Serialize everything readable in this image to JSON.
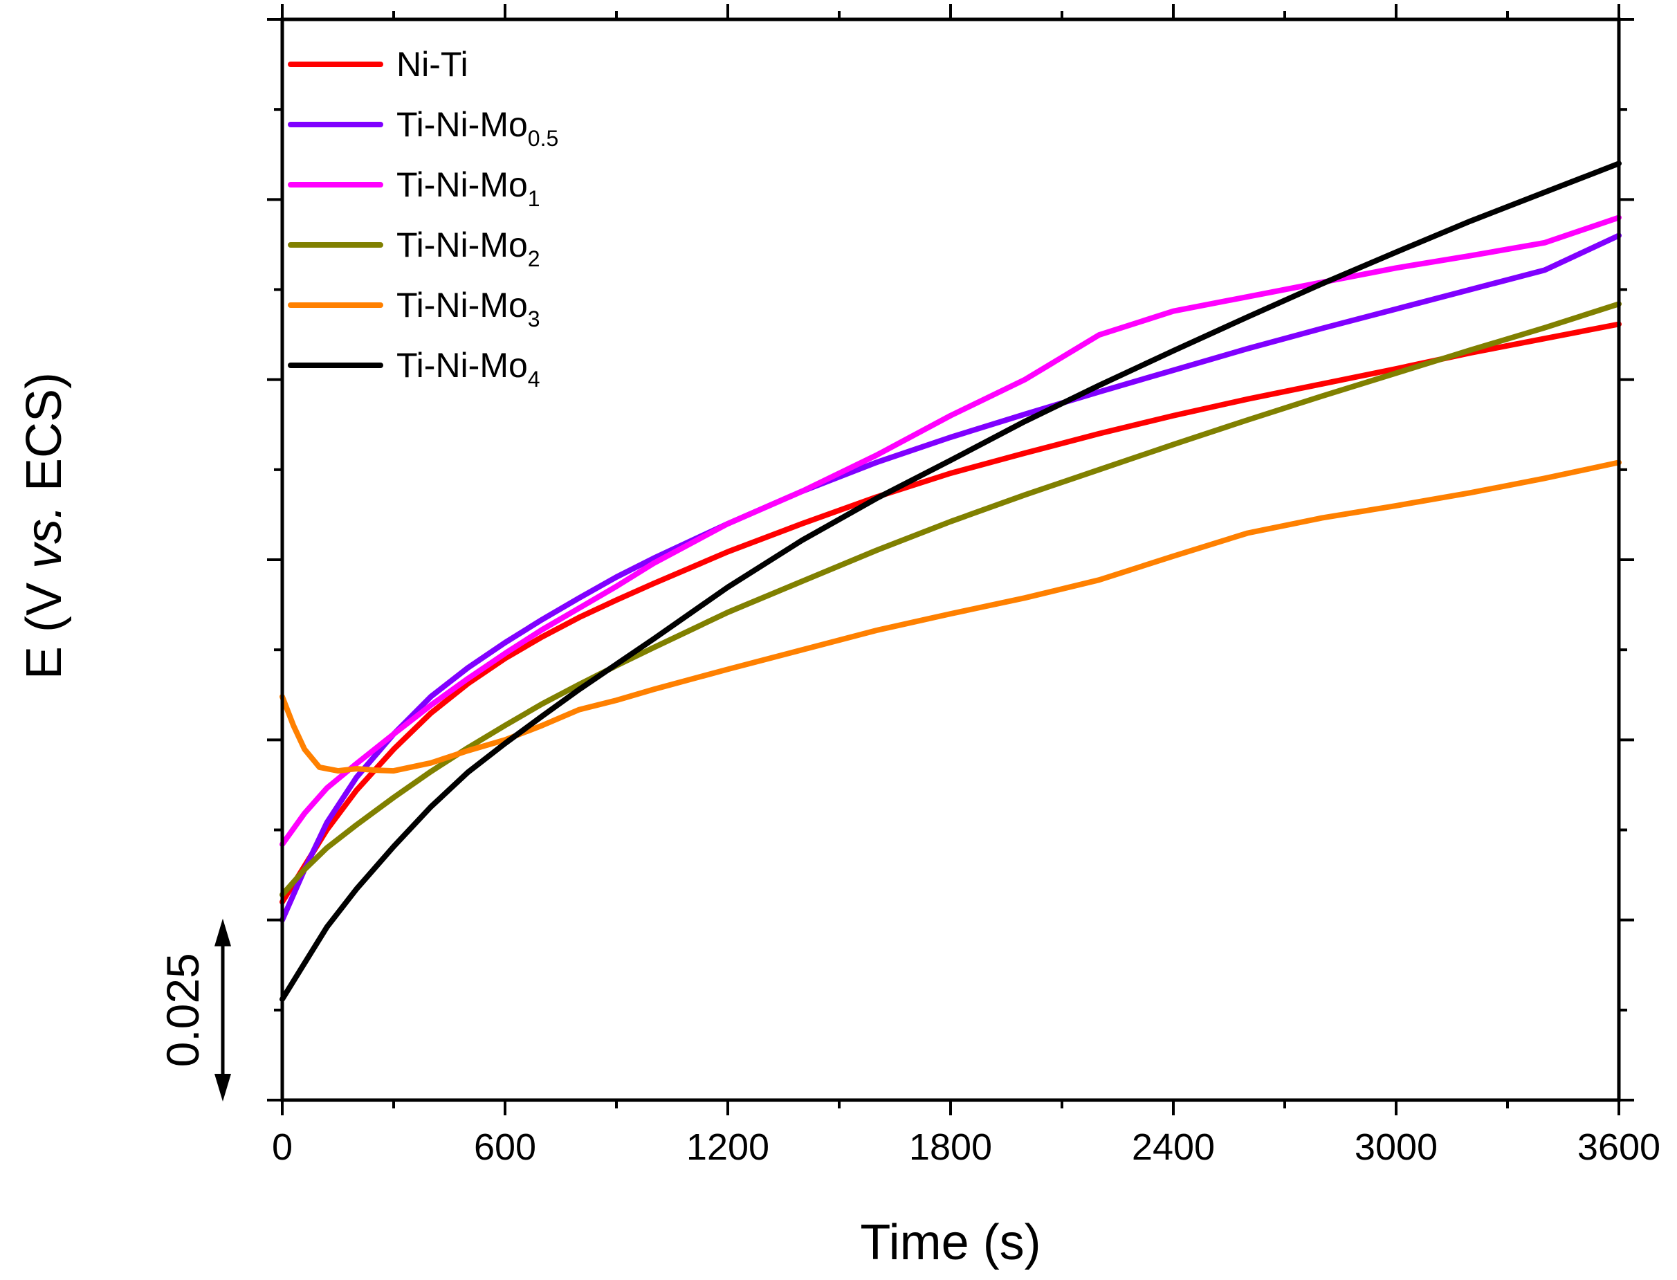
{
  "chart_data": {
    "type": "line",
    "title": "",
    "xlabel": "Time (s)",
    "ylabel": {
      "prefix": "E (V ",
      "italic": "vs.",
      "suffix": " ECS)"
    },
    "xlim": [
      0,
      3600
    ],
    "ylim": [
      0,
      0.15
    ],
    "x_ticks": [
      0,
      600,
      1200,
      1800,
      2400,
      3000,
      3600
    ],
    "x_tick_labels": [
      "0",
      "600",
      "1200",
      "1800",
      "2400",
      "3000",
      "3600"
    ],
    "y_tick_labels_shown": false,
    "scale_bar": {
      "label": "0.025",
      "from": 0,
      "to": 0.025
    },
    "grid": false,
    "legend_position": "top-left",
    "series": [
      {
        "name": "Ni-Ti",
        "label_main": "Ni-Ti",
        "label_sub": "",
        "color": "#ff0000",
        "x": [
          0,
          60,
          120,
          200,
          300,
          400,
          500,
          600,
          700,
          800,
          900,
          1000,
          1200,
          1400,
          1600,
          1800,
          2000,
          2200,
          2400,
          2600,
          2800,
          3000,
          3200,
          3400,
          3600
        ],
        "y": [
          0.0275,
          0.0325,
          0.0375,
          0.043,
          0.0487,
          0.0537,
          0.0578,
          0.0613,
          0.0643,
          0.067,
          0.0694,
          0.0717,
          0.0761,
          0.08,
          0.0837,
          0.087,
          0.0898,
          0.0925,
          0.095,
          0.0973,
          0.0994,
          0.1015,
          0.1037,
          0.1057,
          0.1077
        ]
      },
      {
        "name": "Ti-Ni-Mo0.5",
        "label_main": "Ti-Ni-Mo",
        "label_sub": "0.5",
        "color": "#8000ff",
        "x": [
          0,
          60,
          120,
          200,
          300,
          400,
          500,
          600,
          700,
          800,
          900,
          1000,
          1200,
          1400,
          1600,
          1800,
          2000,
          2200,
          2400,
          2600,
          2800,
          3000,
          3200,
          3400,
          3600
        ],
        "y": [
          0.025,
          0.032,
          0.0385,
          0.0448,
          0.0508,
          0.056,
          0.06,
          0.0635,
          0.0667,
          0.0697,
          0.0726,
          0.0752,
          0.08,
          0.0845,
          0.0885,
          0.092,
          0.0952,
          0.0983,
          0.1013,
          0.1043,
          0.1071,
          0.1098,
          0.1125,
          0.1152,
          0.12
        ]
      },
      {
        "name": "Ti-Ni-Mo1",
        "label_main": "Ti-Ni-Mo",
        "label_sub": "1",
        "color": "#ff00ff",
        "x": [
          0,
          60,
          120,
          200,
          300,
          400,
          500,
          600,
          700,
          800,
          900,
          1000,
          1200,
          1400,
          1600,
          1800,
          2000,
          2200,
          2400,
          2600,
          2800,
          3000,
          3200,
          3400,
          3600
        ],
        "y": [
          0.0355,
          0.0398,
          0.0433,
          0.0467,
          0.0508,
          0.0548,
          0.0585,
          0.062,
          0.0653,
          0.0683,
          0.0713,
          0.0745,
          0.08,
          0.0845,
          0.0895,
          0.095,
          0.1,
          0.1062,
          0.1095,
          0.1115,
          0.1135,
          0.1155,
          0.1172,
          0.119,
          0.1225
        ]
      },
      {
        "name": "Ti-Ni-Mo2",
        "label_main": "Ti-Ni-Mo",
        "label_sub": "2",
        "color": "#808000",
        "x": [
          0,
          60,
          120,
          200,
          300,
          400,
          500,
          600,
          700,
          800,
          900,
          1000,
          1200,
          1400,
          1600,
          1800,
          2000,
          2200,
          2400,
          2600,
          2800,
          3000,
          3200,
          3400,
          3600
        ],
        "y": [
          0.0285,
          0.032,
          0.035,
          0.0382,
          0.042,
          0.0456,
          0.0489,
          0.052,
          0.055,
          0.0577,
          0.0603,
          0.0628,
          0.0677,
          0.072,
          0.0763,
          0.0803,
          0.084,
          0.0875,
          0.091,
          0.0944,
          0.0977,
          0.1009,
          0.1041,
          0.1072,
          0.1105
        ]
      },
      {
        "name": "Ti-Ni-Mo3",
        "label_main": "Ti-Ni-Mo",
        "label_sub": "3",
        "color": "#ff8000",
        "x": [
          0,
          30,
          60,
          100,
          150,
          200,
          250,
          300,
          400,
          500,
          600,
          700,
          800,
          900,
          1000,
          1200,
          1400,
          1600,
          1800,
          2000,
          2200,
          2400,
          2600,
          2800,
          3000,
          3200,
          3400,
          3600
        ],
        "y": [
          0.056,
          0.052,
          0.0487,
          0.0462,
          0.0457,
          0.046,
          0.0458,
          0.0457,
          0.0468,
          0.0485,
          0.05,
          0.052,
          0.0542,
          0.0555,
          0.057,
          0.0598,
          0.0625,
          0.0652,
          0.0675,
          0.0697,
          0.0722,
          0.0755,
          0.0787,
          0.0808,
          0.0825,
          0.0843,
          0.0863,
          0.0885
        ]
      },
      {
        "name": "Ti-Ni-Mo4",
        "label_main": "Ti-Ni-Mo",
        "label_sub": "4",
        "color": "#000000",
        "x": [
          0,
          60,
          120,
          200,
          300,
          400,
          500,
          600,
          700,
          800,
          900,
          1000,
          1200,
          1400,
          1600,
          1800,
          2000,
          2200,
          2400,
          2600,
          2800,
          3000,
          3200,
          3400,
          3600
        ],
        "y": [
          0.014,
          0.019,
          0.024,
          0.0293,
          0.0352,
          0.0407,
          0.0455,
          0.0495,
          0.0533,
          0.057,
          0.0605,
          0.064,
          0.0712,
          0.0777,
          0.0835,
          0.0888,
          0.0942,
          0.0992,
          0.104,
          0.1087,
          0.1133,
          0.1177,
          0.122,
          0.126,
          0.13
        ]
      }
    ]
  }
}
